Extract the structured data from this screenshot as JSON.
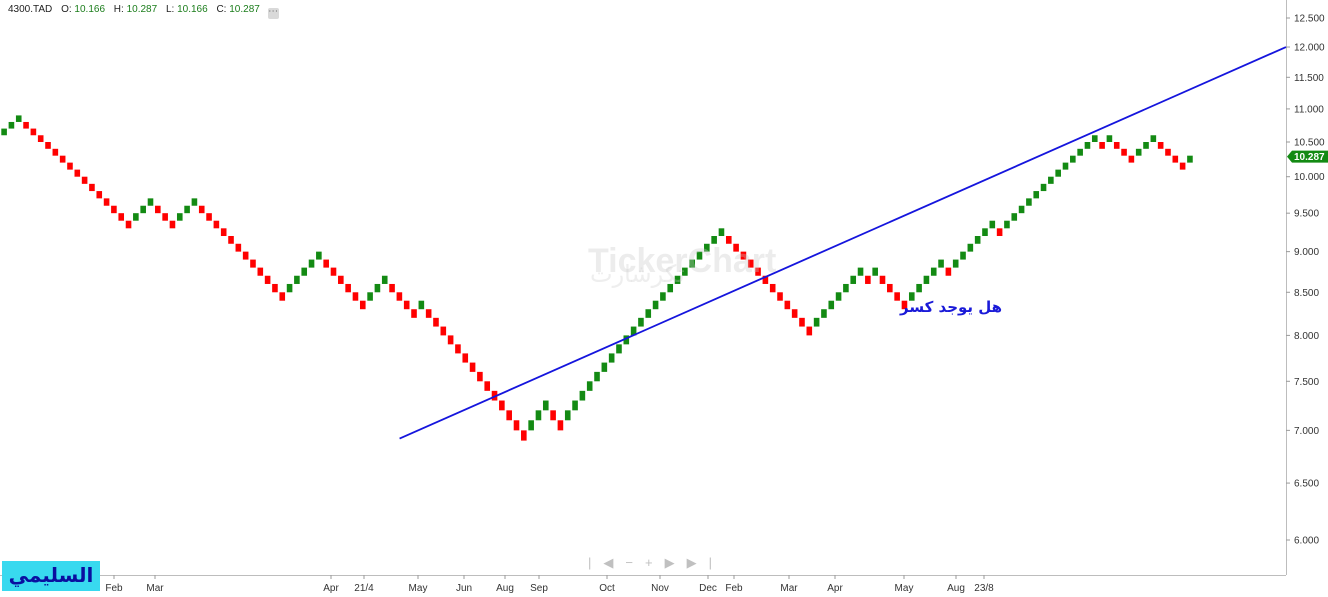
{
  "header": {
    "symbol": "4300.TAD",
    "o_label": "O:",
    "o_value": "10.166",
    "h_label": "H:",
    "h_value": "10.287",
    "l_label": "L:",
    "l_value": "10.166",
    "c_label": "C:",
    "c_value": "10.287"
  },
  "badge": "السليمي",
  "annotation": "هل يوجد كسر",
  "watermark": {
    "text": "TickerChart",
    "arabic": "تكرشارت"
  },
  "colors": {
    "up": "#138a13",
    "down": "#ff0000",
    "trendline": "#1515dd",
    "badge_bg": "#38d9ef"
  },
  "navigation_icons": [
    "separator-icon",
    "chevron-left-icon",
    "zoom-out-icon",
    "zoom-in-icon",
    "chevron-right-icon",
    "end-icon"
  ],
  "chart_data": {
    "type": "renko",
    "brick_size": 0.1,
    "ylim": [
      5.7,
      12.65
    ],
    "y_scale": "log",
    "y_ticks": [
      "12.500",
      "12.000",
      "11.500",
      "11.000",
      "10.500",
      "10.000",
      "9.500",
      "9.000",
      "8.500",
      "8.000",
      "7.500",
      "7.000",
      "6.500",
      "6.000"
    ],
    "x_labels": [
      "Feb",
      "Mar",
      "Apr",
      "21/4",
      "May",
      "Jun",
      "Aug",
      "Sep",
      "Oct",
      "Nov",
      "Dec",
      "Feb",
      "Mar",
      "Apr",
      "May",
      "Aug",
      "23/8"
    ],
    "last_price": "10.287",
    "bricks": [
      {
        "low": 10.6,
        "dir": "up"
      },
      {
        "low": 10.7,
        "dir": "up"
      },
      {
        "low": 10.8,
        "dir": "up"
      },
      {
        "low": 10.7,
        "dir": "down"
      },
      {
        "low": 10.6,
        "dir": "down"
      },
      {
        "low": 10.5,
        "dir": "down"
      },
      {
        "low": 10.4,
        "dir": "down"
      },
      {
        "low": 10.3,
        "dir": "down"
      },
      {
        "low": 10.2,
        "dir": "down"
      },
      {
        "low": 10.1,
        "dir": "down"
      },
      {
        "low": 10.0,
        "dir": "down"
      },
      {
        "low": 9.9,
        "dir": "down"
      },
      {
        "low": 9.8,
        "dir": "down"
      },
      {
        "low": 9.7,
        "dir": "down"
      },
      {
        "low": 9.6,
        "dir": "down"
      },
      {
        "low": 9.5,
        "dir": "down"
      },
      {
        "low": 9.4,
        "dir": "down"
      },
      {
        "low": 9.3,
        "dir": "down"
      },
      {
        "low": 9.4,
        "dir": "up"
      },
      {
        "low": 9.5,
        "dir": "up"
      },
      {
        "low": 9.6,
        "dir": "up"
      },
      {
        "low": 9.5,
        "dir": "down"
      },
      {
        "low": 9.4,
        "dir": "down"
      },
      {
        "low": 9.3,
        "dir": "down"
      },
      {
        "low": 9.4,
        "dir": "up"
      },
      {
        "low": 9.5,
        "dir": "up"
      },
      {
        "low": 9.6,
        "dir": "up"
      },
      {
        "low": 9.5,
        "dir": "down"
      },
      {
        "low": 9.4,
        "dir": "down"
      },
      {
        "low": 9.3,
        "dir": "down"
      },
      {
        "low": 9.2,
        "dir": "down"
      },
      {
        "low": 9.1,
        "dir": "down"
      },
      {
        "low": 9.0,
        "dir": "down"
      },
      {
        "low": 8.9,
        "dir": "down"
      },
      {
        "low": 8.8,
        "dir": "down"
      },
      {
        "low": 8.7,
        "dir": "down"
      },
      {
        "low": 8.6,
        "dir": "down"
      },
      {
        "low": 8.5,
        "dir": "down"
      },
      {
        "low": 8.4,
        "dir": "down"
      },
      {
        "low": 8.5,
        "dir": "up"
      },
      {
        "low": 8.6,
        "dir": "up"
      },
      {
        "low": 8.7,
        "dir": "up"
      },
      {
        "low": 8.8,
        "dir": "up"
      },
      {
        "low": 8.9,
        "dir": "up"
      },
      {
        "low": 8.8,
        "dir": "down"
      },
      {
        "low": 8.7,
        "dir": "down"
      },
      {
        "low": 8.6,
        "dir": "down"
      },
      {
        "low": 8.5,
        "dir": "down"
      },
      {
        "low": 8.4,
        "dir": "down"
      },
      {
        "low": 8.3,
        "dir": "down"
      },
      {
        "low": 8.4,
        "dir": "up"
      },
      {
        "low": 8.5,
        "dir": "up"
      },
      {
        "low": 8.6,
        "dir": "up"
      },
      {
        "low": 8.5,
        "dir": "down"
      },
      {
        "low": 8.4,
        "dir": "down"
      },
      {
        "low": 8.3,
        "dir": "down"
      },
      {
        "low": 8.2,
        "dir": "down"
      },
      {
        "low": 8.3,
        "dir": "up"
      },
      {
        "low": 8.2,
        "dir": "down"
      },
      {
        "low": 8.1,
        "dir": "down"
      },
      {
        "low": 8.0,
        "dir": "down"
      },
      {
        "low": 7.9,
        "dir": "down"
      },
      {
        "low": 7.8,
        "dir": "down"
      },
      {
        "low": 7.7,
        "dir": "down"
      },
      {
        "low": 7.6,
        "dir": "down"
      },
      {
        "low": 7.5,
        "dir": "down"
      },
      {
        "low": 7.4,
        "dir": "down"
      },
      {
        "low": 7.3,
        "dir": "down"
      },
      {
        "low": 7.2,
        "dir": "down"
      },
      {
        "low": 7.1,
        "dir": "down"
      },
      {
        "low": 7.0,
        "dir": "down"
      },
      {
        "low": 6.9,
        "dir": "down"
      },
      {
        "low": 7.0,
        "dir": "up"
      },
      {
        "low": 7.1,
        "dir": "up"
      },
      {
        "low": 7.2,
        "dir": "up"
      },
      {
        "low": 7.1,
        "dir": "down"
      },
      {
        "low": 7.0,
        "dir": "down"
      },
      {
        "low": 7.1,
        "dir": "up"
      },
      {
        "low": 7.2,
        "dir": "up"
      },
      {
        "low": 7.3,
        "dir": "up"
      },
      {
        "low": 7.4,
        "dir": "up"
      },
      {
        "low": 7.5,
        "dir": "up"
      },
      {
        "low": 7.6,
        "dir": "up"
      },
      {
        "low": 7.7,
        "dir": "up"
      },
      {
        "low": 7.8,
        "dir": "up"
      },
      {
        "low": 7.9,
        "dir": "up"
      },
      {
        "low": 8.0,
        "dir": "up"
      },
      {
        "low": 8.1,
        "dir": "up"
      },
      {
        "low": 8.2,
        "dir": "up"
      },
      {
        "low": 8.3,
        "dir": "up"
      },
      {
        "low": 8.4,
        "dir": "up"
      },
      {
        "low": 8.5,
        "dir": "up"
      },
      {
        "low": 8.6,
        "dir": "up"
      },
      {
        "low": 8.7,
        "dir": "up"
      },
      {
        "low": 8.8,
        "dir": "up"
      },
      {
        "low": 8.9,
        "dir": "up"
      },
      {
        "low": 9.0,
        "dir": "up"
      },
      {
        "low": 9.1,
        "dir": "up"
      },
      {
        "low": 9.2,
        "dir": "up"
      },
      {
        "low": 9.1,
        "dir": "down"
      },
      {
        "low": 9.0,
        "dir": "down"
      },
      {
        "low": 8.9,
        "dir": "down"
      },
      {
        "low": 8.8,
        "dir": "down"
      },
      {
        "low": 8.7,
        "dir": "down"
      },
      {
        "low": 8.6,
        "dir": "down"
      },
      {
        "low": 8.5,
        "dir": "down"
      },
      {
        "low": 8.4,
        "dir": "down"
      },
      {
        "low": 8.3,
        "dir": "down"
      },
      {
        "low": 8.2,
        "dir": "down"
      },
      {
        "low": 8.1,
        "dir": "down"
      },
      {
        "low": 8.0,
        "dir": "down"
      },
      {
        "low": 8.1,
        "dir": "up"
      },
      {
        "low": 8.2,
        "dir": "up"
      },
      {
        "low": 8.3,
        "dir": "up"
      },
      {
        "low": 8.4,
        "dir": "up"
      },
      {
        "low": 8.5,
        "dir": "up"
      },
      {
        "low": 8.6,
        "dir": "up"
      },
      {
        "low": 8.7,
        "dir": "up"
      },
      {
        "low": 8.6,
        "dir": "down"
      },
      {
        "low": 8.7,
        "dir": "up"
      },
      {
        "low": 8.6,
        "dir": "down"
      },
      {
        "low": 8.5,
        "dir": "down"
      },
      {
        "low": 8.4,
        "dir": "down"
      },
      {
        "low": 8.3,
        "dir": "down"
      },
      {
        "low": 8.4,
        "dir": "up"
      },
      {
        "low": 8.5,
        "dir": "up"
      },
      {
        "low": 8.6,
        "dir": "up"
      },
      {
        "low": 8.7,
        "dir": "up"
      },
      {
        "low": 8.8,
        "dir": "up"
      },
      {
        "low": 8.7,
        "dir": "down"
      },
      {
        "low": 8.8,
        "dir": "up"
      },
      {
        "low": 8.9,
        "dir": "up"
      },
      {
        "low": 9.0,
        "dir": "up"
      },
      {
        "low": 9.1,
        "dir": "up"
      },
      {
        "low": 9.2,
        "dir": "up"
      },
      {
        "low": 9.3,
        "dir": "up"
      },
      {
        "low": 9.2,
        "dir": "down"
      },
      {
        "low": 9.3,
        "dir": "up"
      },
      {
        "low": 9.4,
        "dir": "up"
      },
      {
        "low": 9.5,
        "dir": "up"
      },
      {
        "low": 9.6,
        "dir": "up"
      },
      {
        "low": 9.7,
        "dir": "up"
      },
      {
        "low": 9.8,
        "dir": "up"
      },
      {
        "low": 9.9,
        "dir": "up"
      },
      {
        "low": 10.0,
        "dir": "up"
      },
      {
        "low": 10.1,
        "dir": "up"
      },
      {
        "low": 10.2,
        "dir": "up"
      },
      {
        "low": 10.3,
        "dir": "up"
      },
      {
        "low": 10.4,
        "dir": "up"
      },
      {
        "low": 10.5,
        "dir": "up"
      },
      {
        "low": 10.4,
        "dir": "down"
      },
      {
        "low": 10.5,
        "dir": "up"
      },
      {
        "low": 10.4,
        "dir": "down"
      },
      {
        "low": 10.3,
        "dir": "down"
      },
      {
        "low": 10.2,
        "dir": "down"
      },
      {
        "low": 10.3,
        "dir": "up"
      },
      {
        "low": 10.4,
        "dir": "up"
      },
      {
        "low": 10.5,
        "dir": "up"
      },
      {
        "low": 10.4,
        "dir": "down"
      },
      {
        "low": 10.3,
        "dir": "down"
      },
      {
        "low": 10.2,
        "dir": "down"
      },
      {
        "low": 10.1,
        "dir": "down"
      },
      {
        "low": 10.2,
        "dir": "up"
      }
    ],
    "trendline": {
      "from": {
        "brick": 54,
        "price": 6.92
      },
      "to": {
        "brick": 162,
        "price": 12.0
      }
    }
  }
}
